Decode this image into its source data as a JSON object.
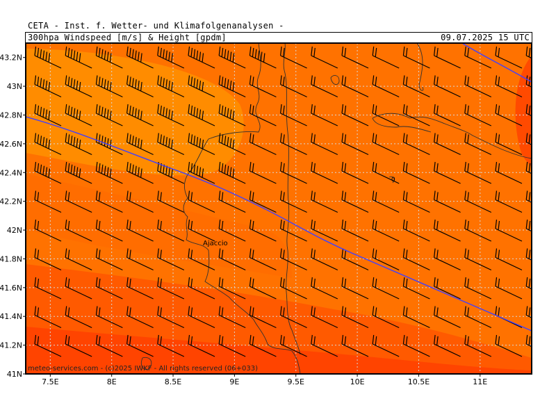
{
  "header": {
    "institute": "CETA - Inst. f. Wetter- und Klimafolgenanalysen -",
    "subtitle": "300hpa Windspeed [m/s] & Height [gpdm]",
    "timestamp": "09.07.2025 15 UTC"
  },
  "map": {
    "lat_ticks": [
      "43.2N",
      "43N",
      "42.8N",
      "42.6N",
      "42.4N",
      "42.2N",
      "42N",
      "41.8N",
      "41.6N",
      "41.4N",
      "41.2N",
      "41N"
    ],
    "lon_ticks": [
      "7.5E",
      "8E",
      "8.5E",
      "9E",
      "9.5E",
      "10E",
      "10.5E",
      "11E"
    ],
    "city_label": "Ajaccio",
    "contour_label": "0",
    "credit": "meteo-services.com - (c)2025 IWKF - All rights reserved (06+033)",
    "colors": {
      "light_orange": "#ff8c00",
      "mid_orange": "#ff7200",
      "dark_orange": "#ff5a00",
      "red_orange": "#ff4400",
      "height_contour": "#4040ff"
    }
  }
}
